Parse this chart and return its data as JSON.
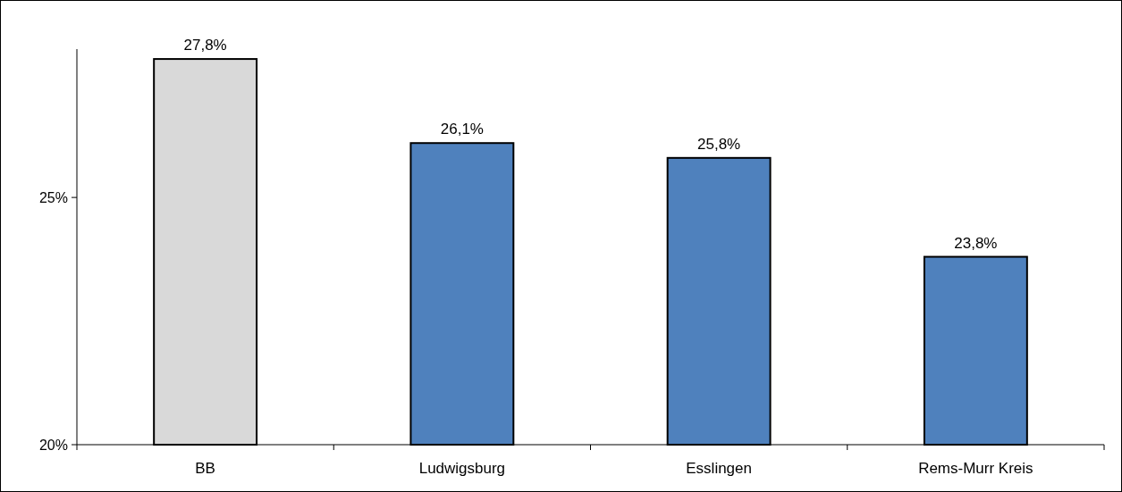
{
  "chart_data": {
    "type": "bar",
    "categories": [
      "BB",
      "Ludwigsburg",
      "Esslingen",
      "Rems-Murr Kreis"
    ],
    "values": [
      27.8,
      26.1,
      25.8,
      23.8
    ],
    "colors": [
      "#d9d9d9",
      "#4f81bd",
      "#4f81bd",
      "#4f81bd"
    ],
    "value_labels": [
      "27,8%",
      "26,1%",
      "25,8%",
      "23,8%"
    ],
    "ylim": [
      20,
      28
    ],
    "yticks": [
      {
        "value": 20,
        "label": "20%"
      },
      {
        "value": 25,
        "label": "25%"
      }
    ],
    "grid": false
  }
}
